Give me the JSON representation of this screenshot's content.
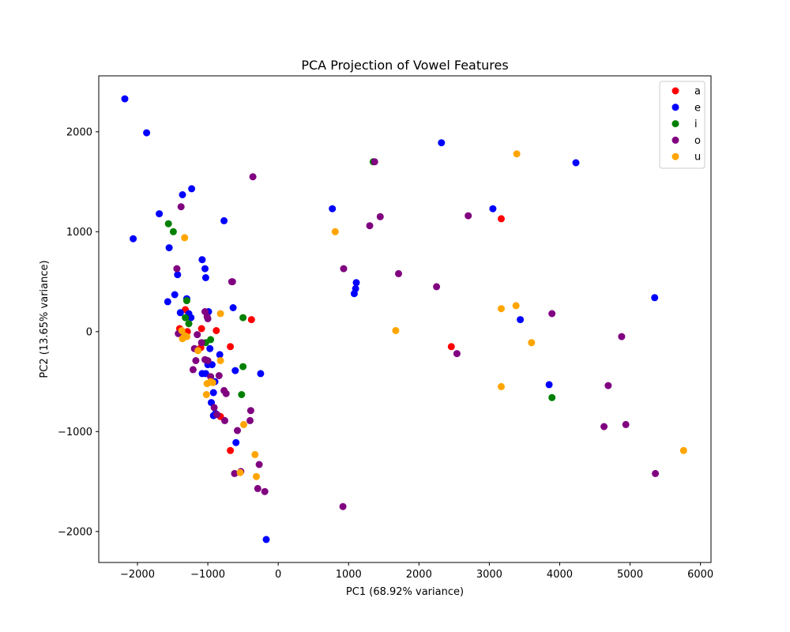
{
  "chart_data": {
    "type": "scatter",
    "title": "PCA Projection of Vowel Features",
    "xlabel": "PC1 (68.92% variance)",
    "ylabel": "PC2 (13.65% variance)",
    "xlim": [
      -2550,
      6150
    ],
    "ylim": [
      -2310,
      2560
    ],
    "xticks": [
      -2000,
      -1000,
      0,
      1000,
      2000,
      3000,
      4000,
      5000,
      6000
    ],
    "yticks": [
      -2000,
      -1000,
      0,
      1000,
      2000
    ],
    "grid": false,
    "legend_position": "top-right",
    "series": [
      {
        "name": "a",
        "color": "#ff0000",
        "points": [
          [
            -1400,
            30
          ],
          [
            -1320,
            220
          ],
          [
            -1290,
            0
          ],
          [
            -1090,
            30
          ],
          [
            -880,
            10
          ],
          [
            -680,
            -150
          ],
          [
            -380,
            120
          ],
          [
            -820,
            -850
          ],
          [
            -680,
            -1190
          ],
          [
            -1100,
            -160
          ],
          [
            3170,
            1130
          ],
          [
            2460,
            -150
          ]
        ]
      },
      {
        "name": "e",
        "color": "#0000ff",
        "points": [
          [
            -2180,
            2330
          ],
          [
            -1870,
            1990
          ],
          [
            -2060,
            930
          ],
          [
            -1690,
            1180
          ],
          [
            -1550,
            840
          ],
          [
            -1360,
            1370
          ],
          [
            -1230,
            1430
          ],
          [
            -770,
            1110
          ],
          [
            -1080,
            720
          ],
          [
            -1040,
            630
          ],
          [
            -1030,
            540
          ],
          [
            -1430,
            570
          ],
          [
            -1470,
            370
          ],
          [
            -1570,
            300
          ],
          [
            -1390,
            190
          ],
          [
            -1270,
            180
          ],
          [
            -1240,
            140
          ],
          [
            -1300,
            330
          ],
          [
            -990,
            200
          ],
          [
            -640,
            240
          ],
          [
            -970,
            -170
          ],
          [
            -940,
            -330
          ],
          [
            -1000,
            -330
          ],
          [
            -1080,
            -420
          ],
          [
            -1030,
            -420
          ],
          [
            -830,
            -230
          ],
          [
            -610,
            -390
          ],
          [
            -250,
            -420
          ],
          [
            -900,
            -500
          ],
          [
            -920,
            -610
          ],
          [
            -950,
            -710
          ],
          [
            -890,
            -820
          ],
          [
            -920,
            -840
          ],
          [
            -600,
            -1110
          ],
          [
            -170,
            -2080
          ],
          [
            770,
            1230
          ],
          [
            1110,
            490
          ],
          [
            1100,
            430
          ],
          [
            1080,
            380
          ],
          [
            2320,
            1890
          ],
          [
            3050,
            1230
          ],
          [
            4230,
            1690
          ],
          [
            3440,
            120
          ],
          [
            3850,
            -530
          ],
          [
            5350,
            340
          ]
        ]
      },
      {
        "name": "i",
        "color": "#008000",
        "points": [
          [
            -1560,
            1080
          ],
          [
            -1490,
            1000
          ],
          [
            -1300,
            310
          ],
          [
            -1320,
            140
          ],
          [
            -1270,
            80
          ],
          [
            -1030,
            -110
          ],
          [
            -960,
            -80
          ],
          [
            -500,
            140
          ],
          [
            -500,
            -350
          ],
          [
            -520,
            -630
          ],
          [
            1350,
            1700
          ],
          [
            3890,
            -660
          ]
        ]
      },
      {
        "name": "o",
        "color": "#800080",
        "points": [
          [
            -1380,
            1250
          ],
          [
            -1440,
            630
          ],
          [
            -1040,
            200
          ],
          [
            -1000,
            130
          ],
          [
            -1010,
            150
          ],
          [
            -660,
            500
          ],
          [
            -650,
            500
          ],
          [
            -1420,
            -20
          ],
          [
            -1150,
            -30
          ],
          [
            -1190,
            -170
          ],
          [
            -1090,
            -110
          ],
          [
            -1170,
            -290
          ],
          [
            -1040,
            -280
          ],
          [
            -1000,
            -290
          ],
          [
            -960,
            -450
          ],
          [
            -1210,
            -380
          ],
          [
            -840,
            -440
          ],
          [
            -770,
            -590
          ],
          [
            -740,
            -620
          ],
          [
            -910,
            -760
          ],
          [
            -760,
            -890
          ],
          [
            -870,
            -830
          ],
          [
            -390,
            -790
          ],
          [
            -400,
            -890
          ],
          [
            -580,
            -990
          ],
          [
            -620,
            -1420
          ],
          [
            -530,
            -1400
          ],
          [
            -270,
            -1330
          ],
          [
            -290,
            -1570
          ],
          [
            -190,
            -1600
          ],
          [
            -360,
            1550
          ],
          [
            920,
            -1750
          ],
          [
            930,
            630
          ],
          [
            1370,
            1700
          ],
          [
            1450,
            1150
          ],
          [
            1300,
            1060
          ],
          [
            1710,
            580
          ],
          [
            2250,
            450
          ],
          [
            2700,
            1160
          ],
          [
            2540,
            -220
          ],
          [
            3890,
            180
          ],
          [
            4880,
            -50
          ],
          [
            4690,
            -540
          ],
          [
            4630,
            -950
          ],
          [
            4940,
            -930
          ],
          [
            5360,
            -1420
          ]
        ]
      },
      {
        "name": "u",
        "color": "#ffa500",
        "points": [
          [
            -1330,
            940
          ],
          [
            -1360,
            -70
          ],
          [
            -1370,
            10
          ],
          [
            -1330,
            -40
          ],
          [
            -1300,
            -50
          ],
          [
            -1140,
            -190
          ],
          [
            -820,
            180
          ],
          [
            -820,
            -290
          ],
          [
            -960,
            -500
          ],
          [
            -930,
            -510
          ],
          [
            -1010,
            -520
          ],
          [
            -1020,
            -630
          ],
          [
            -490,
            -930
          ],
          [
            -330,
            -1230
          ],
          [
            -310,
            -1450
          ],
          [
            -540,
            -1410
          ],
          [
            810,
            1000
          ],
          [
            1670,
            10
          ],
          [
            3170,
            230
          ],
          [
            3380,
            260
          ],
          [
            3170,
            -550
          ],
          [
            3600,
            -110
          ],
          [
            3390,
            1780
          ],
          [
            5760,
            -1190
          ]
        ]
      }
    ]
  }
}
